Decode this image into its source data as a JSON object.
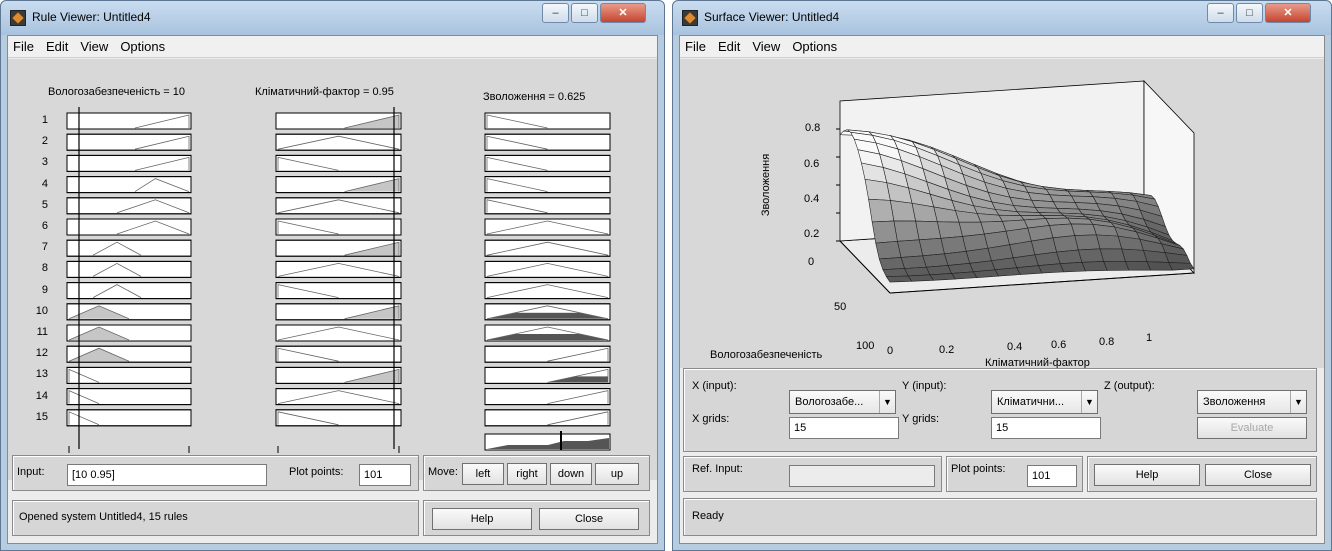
{
  "rule_viewer": {
    "title": "Rule Viewer: Untitled4",
    "menu": [
      "File",
      "Edit",
      "View",
      "Options"
    ],
    "headers": [
      "Вологозабезпеченість = 10",
      "Кліматичний-фактор = 0.95",
      "Зволоження = 0.625"
    ],
    "rules": [
      "1",
      "2",
      "3",
      "4",
      "5",
      "6",
      "7",
      "8",
      "9",
      "10",
      "11",
      "12",
      "13",
      "14",
      "15"
    ],
    "axis1": {
      "min": "0",
      "max": "100"
    },
    "axis2": {
      "min": "0",
      "max": "1"
    },
    "input_label": "Input:",
    "input_value": "[10 0.95]",
    "plot_points_label": "Plot points:",
    "plot_points_value": "101",
    "move_label": "Move:",
    "move_buttons": [
      "left",
      "right",
      "down",
      "up"
    ],
    "status": "Opened system Untitled4, 15 rules",
    "help": "Help",
    "close": "Close"
  },
  "surface_viewer": {
    "title": "Surface Viewer: Untitled4",
    "menu": [
      "File",
      "Edit",
      "View",
      "Options"
    ],
    "z_ticks": [
      "0.8",
      "0.6",
      "0.4",
      "0.2",
      "0"
    ],
    "z_label": "Зволоження",
    "y_ticks": [
      "50",
      "100"
    ],
    "y_label": "Вологозабезпеченість",
    "x_ticks": [
      "0",
      "0.2",
      "0.4",
      "0.6",
      "0.8",
      "1"
    ],
    "x_label": "Кліматичний-фактор",
    "x_input_label": "X (input):",
    "x_input_value": "Вологозабе...",
    "y_input_label": "Y (input):",
    "y_input_value": "Кліматични...",
    "z_output_label": "Z (output):",
    "z_output_value": "Зволоження",
    "x_grids_label": "X grids:",
    "x_grids_value": "15",
    "y_grids_label": "Y grids:",
    "y_grids_value": "15",
    "evaluate": "Evaluate",
    "ref_input_label": "Ref. Input:",
    "plot_points_label": "Plot points:",
    "plot_points_value": "101",
    "help": "Help",
    "close": "Close",
    "status": "Ready"
  }
}
